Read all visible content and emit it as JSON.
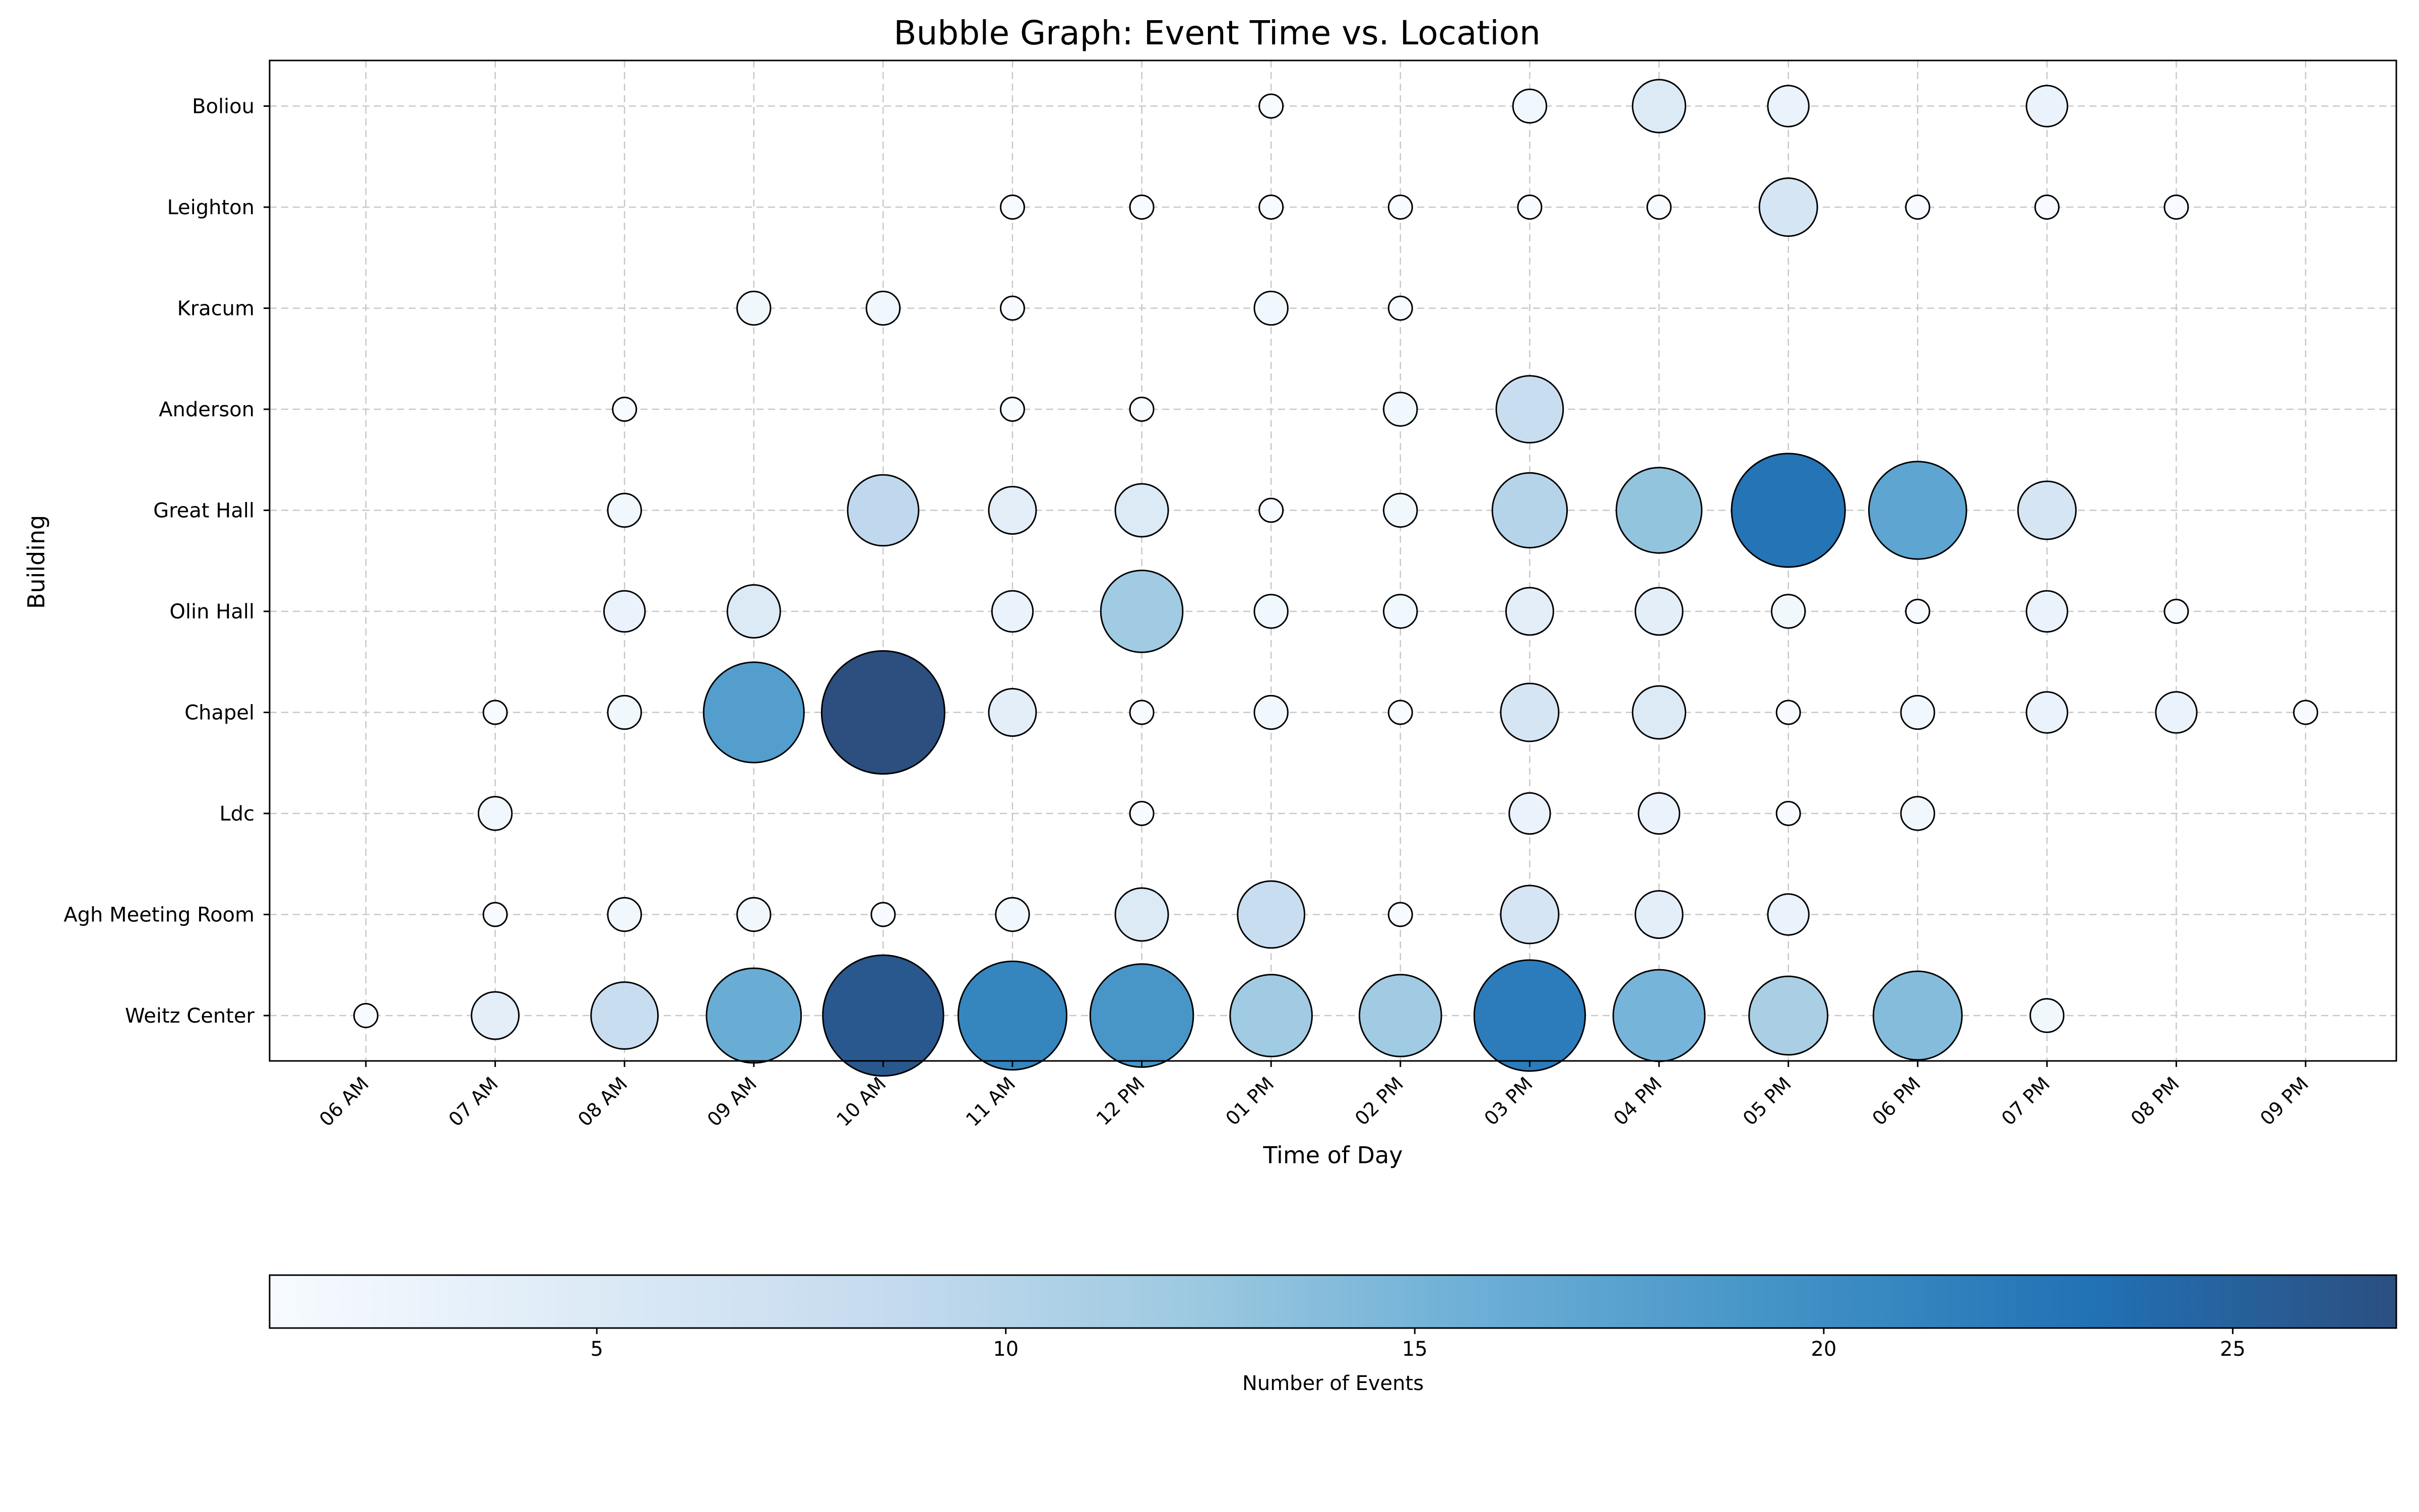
{
  "chart_data": {
    "type": "scatter",
    "subtype": "bubble",
    "title": "Bubble Graph: Event Time vs. Location",
    "xlabel": "Time of Day",
    "ylabel": "Building",
    "x_categories": [
      "06 AM",
      "07 AM",
      "08 AM",
      "09 AM",
      "10 AM",
      "11 AM",
      "12 PM",
      "01 PM",
      "02 PM",
      "03 PM",
      "04 PM",
      "05 PM",
      "06 PM",
      "07 PM",
      "08 PM",
      "09 PM"
    ],
    "y_categories": [
      "Weitz Center",
      "Agh Meeting Room",
      "Ldc",
      "Chapel",
      "Olin Hall",
      "Great Hall",
      "Anderson",
      "Kracum",
      "Leighton",
      "Boliou"
    ],
    "grid": true,
    "colorbar": {
      "label": "Number of Events",
      "ticks": [
        5,
        10,
        15,
        20,
        25
      ],
      "range": [
        1,
        27
      ],
      "colormap": [
        "#f7fbff",
        "#deebf7",
        "#c6dbef",
        "#9ecae1",
        "#6baed6",
        "#4292c6",
        "#2171b5",
        "#2c4f80"
      ]
    },
    "points": [
      {
        "x": "06 AM",
        "y": "Weitz Center",
        "value": 1
      },
      {
        "x": "07 AM",
        "y": "Weitz Center",
        "value": 4
      },
      {
        "x": "08 AM",
        "y": "Weitz Center",
        "value": 8
      },
      {
        "x": "09 AM",
        "y": "Weitz Center",
        "value": 16
      },
      {
        "x": "10 AM",
        "y": "Weitz Center",
        "value": 26
      },
      {
        "x": "11 AM",
        "y": "Weitz Center",
        "value": 21
      },
      {
        "x": "12 PM",
        "y": "Weitz Center",
        "value": 19
      },
      {
        "x": "01 PM",
        "y": "Weitz Center",
        "value": 12
      },
      {
        "x": "02 PM",
        "y": "Weitz Center",
        "value": 12
      },
      {
        "x": "03 PM",
        "y": "Weitz Center",
        "value": 22
      },
      {
        "x": "04 PM",
        "y": "Weitz Center",
        "value": 15
      },
      {
        "x": "05 PM",
        "y": "Weitz Center",
        "value": 11
      },
      {
        "x": "06 PM",
        "y": "Weitz Center",
        "value": 14
      },
      {
        "x": "07 PM",
        "y": "Weitz Center",
        "value": 2
      },
      {
        "x": "07 AM",
        "y": "Agh Meeting Room",
        "value": 1
      },
      {
        "x": "08 AM",
        "y": "Agh Meeting Room",
        "value": 2
      },
      {
        "x": "09 AM",
        "y": "Agh Meeting Room",
        "value": 2
      },
      {
        "x": "10 AM",
        "y": "Agh Meeting Room",
        "value": 1
      },
      {
        "x": "11 AM",
        "y": "Agh Meeting Room",
        "value": 2
      },
      {
        "x": "12 PM",
        "y": "Agh Meeting Room",
        "value": 5
      },
      {
        "x": "01 PM",
        "y": "Agh Meeting Room",
        "value": 8
      },
      {
        "x": "02 PM",
        "y": "Agh Meeting Room",
        "value": 1
      },
      {
        "x": "03 PM",
        "y": "Agh Meeting Room",
        "value": 6
      },
      {
        "x": "04 PM",
        "y": "Agh Meeting Room",
        "value": 4
      },
      {
        "x": "05 PM",
        "y": "Agh Meeting Room",
        "value": 3
      },
      {
        "x": "07 AM",
        "y": "Ldc",
        "value": 2
      },
      {
        "x": "12 PM",
        "y": "Ldc",
        "value": 1
      },
      {
        "x": "03 PM",
        "y": "Ldc",
        "value": 3
      },
      {
        "x": "04 PM",
        "y": "Ldc",
        "value": 3
      },
      {
        "x": "05 PM",
        "y": "Ldc",
        "value": 1
      },
      {
        "x": "06 PM",
        "y": "Ldc",
        "value": 2
      },
      {
        "x": "07 AM",
        "y": "Chapel",
        "value": 1
      },
      {
        "x": "08 AM",
        "y": "Chapel",
        "value": 2
      },
      {
        "x": "09 AM",
        "y": "Chapel",
        "value": 18
      },
      {
        "x": "10 AM",
        "y": "Chapel",
        "value": 27
      },
      {
        "x": "11 AM",
        "y": "Chapel",
        "value": 4
      },
      {
        "x": "12 PM",
        "y": "Chapel",
        "value": 1
      },
      {
        "x": "01 PM",
        "y": "Chapel",
        "value": 2
      },
      {
        "x": "02 PM",
        "y": "Chapel",
        "value": 1
      },
      {
        "x": "03 PM",
        "y": "Chapel",
        "value": 6
      },
      {
        "x": "04 PM",
        "y": "Chapel",
        "value": 5
      },
      {
        "x": "05 PM",
        "y": "Chapel",
        "value": 1
      },
      {
        "x": "06 PM",
        "y": "Chapel",
        "value": 2
      },
      {
        "x": "07 PM",
        "y": "Chapel",
        "value": 3
      },
      {
        "x": "08 PM",
        "y": "Chapel",
        "value": 3
      },
      {
        "x": "09 PM",
        "y": "Chapel",
        "value": 1
      },
      {
        "x": "08 AM",
        "y": "Olin Hall",
        "value": 3
      },
      {
        "x": "09 AM",
        "y": "Olin Hall",
        "value": 5
      },
      {
        "x": "11 AM",
        "y": "Olin Hall",
        "value": 3
      },
      {
        "x": "12 PM",
        "y": "Olin Hall",
        "value": 12
      },
      {
        "x": "01 PM",
        "y": "Olin Hall",
        "value": 2
      },
      {
        "x": "02 PM",
        "y": "Olin Hall",
        "value": 2
      },
      {
        "x": "03 PM",
        "y": "Olin Hall",
        "value": 4
      },
      {
        "x": "04 PM",
        "y": "Olin Hall",
        "value": 4
      },
      {
        "x": "05 PM",
        "y": "Olin Hall",
        "value": 2
      },
      {
        "x": "06 PM",
        "y": "Olin Hall",
        "value": 1
      },
      {
        "x": "07 PM",
        "y": "Olin Hall",
        "value": 3
      },
      {
        "x": "08 PM",
        "y": "Olin Hall",
        "value": 1
      },
      {
        "x": "08 AM",
        "y": "Great Hall",
        "value": 2
      },
      {
        "x": "10 AM",
        "y": "Great Hall",
        "value": 9
      },
      {
        "x": "11 AM",
        "y": "Great Hall",
        "value": 4
      },
      {
        "x": "12 PM",
        "y": "Great Hall",
        "value": 5
      },
      {
        "x": "01 PM",
        "y": "Great Hall",
        "value": 1
      },
      {
        "x": "02 PM",
        "y": "Great Hall",
        "value": 2
      },
      {
        "x": "03 PM",
        "y": "Great Hall",
        "value": 10
      },
      {
        "x": "04 PM",
        "y": "Great Hall",
        "value": 13
      },
      {
        "x": "05 PM",
        "y": "Great Hall",
        "value": 23
      },
      {
        "x": "06 PM",
        "y": "Great Hall",
        "value": 17
      },
      {
        "x": "07 PM",
        "y": "Great Hall",
        "value": 6
      },
      {
        "x": "08 AM",
        "y": "Anderson",
        "value": 1
      },
      {
        "x": "11 AM",
        "y": "Anderson",
        "value": 1
      },
      {
        "x": "12 PM",
        "y": "Anderson",
        "value": 1
      },
      {
        "x": "02 PM",
        "y": "Anderson",
        "value": 2
      },
      {
        "x": "03 PM",
        "y": "Anderson",
        "value": 8
      },
      {
        "x": "09 AM",
        "y": "Kracum",
        "value": 2
      },
      {
        "x": "10 AM",
        "y": "Kracum",
        "value": 2
      },
      {
        "x": "11 AM",
        "y": "Kracum",
        "value": 1
      },
      {
        "x": "01 PM",
        "y": "Kracum",
        "value": 2
      },
      {
        "x": "02 PM",
        "y": "Kracum",
        "value": 1
      },
      {
        "x": "11 AM",
        "y": "Leighton",
        "value": 1
      },
      {
        "x": "12 PM",
        "y": "Leighton",
        "value": 1
      },
      {
        "x": "01 PM",
        "y": "Leighton",
        "value": 1
      },
      {
        "x": "02 PM",
        "y": "Leighton",
        "value": 1
      },
      {
        "x": "03 PM",
        "y": "Leighton",
        "value": 1
      },
      {
        "x": "04 PM",
        "y": "Leighton",
        "value": 1
      },
      {
        "x": "05 PM",
        "y": "Leighton",
        "value": 6
      },
      {
        "x": "06 PM",
        "y": "Leighton",
        "value": 1
      },
      {
        "x": "07 PM",
        "y": "Leighton",
        "value": 1
      },
      {
        "x": "08 PM",
        "y": "Leighton",
        "value": 1
      },
      {
        "x": "01 PM",
        "y": "Boliou",
        "value": 1
      },
      {
        "x": "03 PM",
        "y": "Boliou",
        "value": 2
      },
      {
        "x": "04 PM",
        "y": "Boliou",
        "value": 5
      },
      {
        "x": "05 PM",
        "y": "Boliou",
        "value": 3
      },
      {
        "x": "07 PM",
        "y": "Boliou",
        "value": 3
      }
    ]
  }
}
